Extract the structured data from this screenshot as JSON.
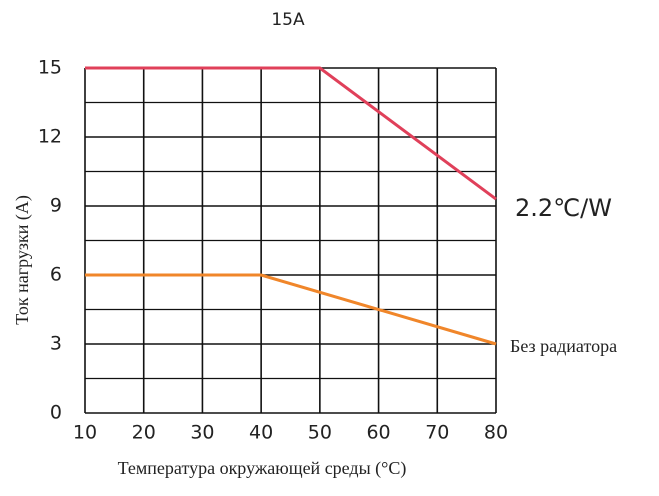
{
  "chart_data": {
    "type": "line",
    "title": "15A",
    "x_label": "Температура окружающей среды (°C)",
    "y_label": "Ток нагрузки (A)",
    "series": [
      {
        "name": "2.2℃/W",
        "color": "#e0405a",
        "x": [
          10,
          50,
          80
        ],
        "values": [
          15,
          15,
          9.3
        ]
      },
      {
        "name": "Без радиатора",
        "color": "#f0862a",
        "x": [
          10,
          40,
          80
        ],
        "values": [
          6,
          6,
          3
        ]
      }
    ],
    "xlim": [
      10,
      80
    ],
    "xticks": [
      10,
      20,
      30,
      40,
      50,
      60,
      70,
      80
    ],
    "ylim": [
      0,
      15
    ],
    "yticks": [
      0,
      3,
      6,
      9,
      12,
      15
    ],
    "grid": true
  }
}
